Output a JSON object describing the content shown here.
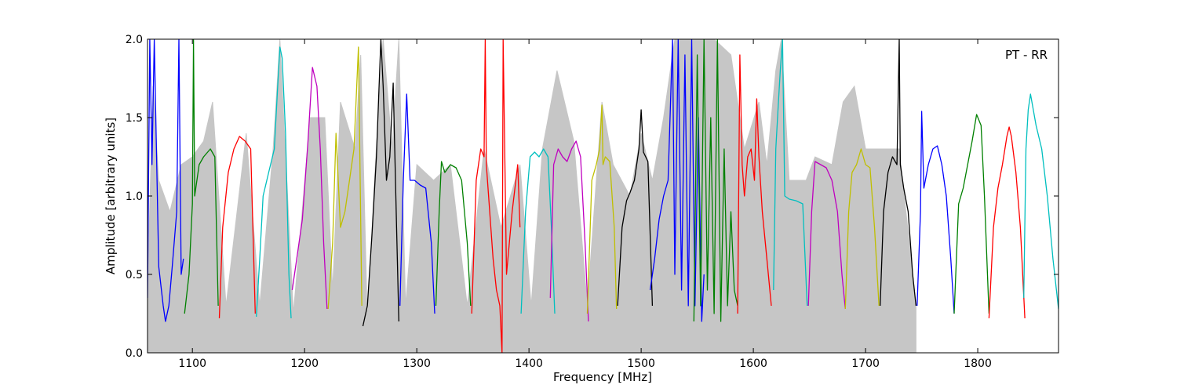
{
  "chart_data": {
    "type": "line",
    "title": "",
    "annotation": "PT - RR",
    "xlabel": "Frequency [MHz]",
    "ylabel": "Amplitude [arbitrary units]",
    "xlim": [
      1060,
      1872
    ],
    "ylim": [
      0,
      2.0
    ],
    "x_ticks": [
      1100,
      1200,
      1300,
      1400,
      1500,
      1600,
      1700,
      1800
    ],
    "x_tick_labels": [
      "1100",
      "1200",
      "1300",
      "1400",
      "1500",
      "1600",
      "1700",
      "1800"
    ],
    "y_ticks": [
      0.0,
      0.5,
      1.0,
      1.5,
      2.0
    ],
    "y_tick_labels": [
      "0.0",
      "0.5",
      "1.0",
      "1.5",
      "2.0"
    ],
    "grid": false,
    "background_color": "#c0c0c0",
    "background": [
      [
        1060,
        0.4
      ],
      [
        1065,
        1.7
      ],
      [
        1070,
        1.1
      ],
      [
        1080,
        0.9
      ],
      [
        1090,
        1.2
      ],
      [
        1100,
        1.25
      ],
      [
        1110,
        1.35
      ],
      [
        1118,
        1.6
      ],
      [
        1130,
        0.3
      ],
      [
        1148,
        1.4
      ],
      [
        1160,
        0.3
      ],
      [
        1172,
        1.3
      ],
      [
        1178,
        2.0
      ],
      [
        1190,
        0.25
      ],
      [
        1205,
        1.5
      ],
      [
        1218,
        1.5
      ],
      [
        1225,
        0.4
      ],
      [
        1232,
        1.6
      ],
      [
        1245,
        1.3
      ],
      [
        1250,
        1.9
      ],
      [
        1256,
        0.2
      ],
      [
        1263,
        1.2
      ],
      [
        1270,
        2.0
      ],
      [
        1278,
        1.3
      ],
      [
        1284,
        2.0
      ],
      [
        1290,
        0.3
      ],
      [
        1300,
        1.2
      ],
      [
        1315,
        1.1
      ],
      [
        1330,
        1.2
      ],
      [
        1345,
        0.3
      ],
      [
        1360,
        1.3
      ],
      [
        1375,
        0.8
      ],
      [
        1392,
        1.2
      ],
      [
        1402,
        0.3
      ],
      [
        1412,
        1.3
      ],
      [
        1425,
        1.8
      ],
      [
        1440,
        1.35
      ],
      [
        1452,
        0.3
      ],
      [
        1465,
        1.6
      ],
      [
        1475,
        1.2
      ],
      [
        1490,
        1.0
      ],
      [
        1500,
        1.4
      ],
      [
        1510,
        1.1
      ],
      [
        1520,
        1.5
      ],
      [
        1530,
        2.0
      ],
      [
        1550,
        2.0
      ],
      [
        1565,
        2.0
      ],
      [
        1580,
        1.9
      ],
      [
        1592,
        1.3
      ],
      [
        1605,
        1.6
      ],
      [
        1612,
        1.2
      ],
      [
        1620,
        1.8
      ],
      [
        1625,
        2.0
      ],
      [
        1632,
        1.1
      ],
      [
        1647,
        1.1
      ],
      [
        1655,
        1.25
      ],
      [
        1670,
        1.2
      ],
      [
        1680,
        1.6
      ],
      [
        1690,
        1.7
      ],
      [
        1700,
        1.3
      ],
      [
        1710,
        1.3
      ],
      [
        1720,
        1.3
      ],
      [
        1730,
        1.3
      ],
      [
        1745,
        0.3
      ]
    ],
    "series": [
      {
        "color": "#0000ff",
        "x": [
          1060,
          1062,
          1064,
          1066,
          1070,
          1074,
          1076,
          1079,
          1082,
          1086,
          1088,
          1090,
          1092
        ],
        "y": [
          0.35,
          2.0,
          1.2,
          2.0,
          0.55,
          0.3,
          0.2,
          0.3,
          0.55,
          0.9,
          2.0,
          0.5,
          0.6
        ]
      },
      {
        "color": "#008000",
        "x": [
          1093,
          1097,
          1100,
          1101,
          1102,
          1106,
          1110,
          1116,
          1120,
          1123
        ],
        "y": [
          0.25,
          0.5,
          0.95,
          2.0,
          1.0,
          1.2,
          1.25,
          1.3,
          1.25,
          0.3
        ]
      },
      {
        "color": "#ff0000",
        "x": [
          1124,
          1127,
          1132,
          1137,
          1142,
          1147,
          1152,
          1156
        ],
        "y": [
          0.22,
          0.8,
          1.15,
          1.3,
          1.38,
          1.35,
          1.3,
          0.25
        ]
      },
      {
        "color": "#00bfbf",
        "x": [
          1157,
          1160,
          1163,
          1168,
          1173,
          1176,
          1178,
          1180,
          1183,
          1186,
          1188
        ],
        "y": [
          0.23,
          0.6,
          1.0,
          1.15,
          1.3,
          1.7,
          1.95,
          1.88,
          1.4,
          0.5,
          0.22
        ]
      },
      {
        "color": "#bf00bf",
        "x": [
          1189,
          1193,
          1198,
          1203,
          1207,
          1211,
          1214,
          1217,
          1220
        ],
        "y": [
          0.4,
          0.6,
          0.85,
          1.35,
          1.82,
          1.7,
          1.3,
          0.7,
          0.28
        ]
      },
      {
        "color": "#bfbf00",
        "x": [
          1221,
          1225,
          1228,
          1232,
          1236,
          1240,
          1244,
          1248,
          1251
        ],
        "y": [
          0.28,
          0.7,
          1.4,
          0.8,
          0.9,
          1.1,
          1.3,
          1.95,
          0.3
        ]
      },
      {
        "color": "#000000",
        "x": [
          1252,
          1256,
          1260,
          1264,
          1268,
          1270,
          1273,
          1276,
          1279,
          1282,
          1284
        ],
        "y": [
          0.17,
          0.3,
          0.75,
          1.25,
          2.0,
          1.7,
          1.1,
          1.25,
          1.72,
          0.8,
          0.2
        ]
      },
      {
        "color": "#0000ff",
        "x": [
          1285,
          1288,
          1291,
          1294,
          1298,
          1303,
          1308,
          1313,
          1316
        ],
        "y": [
          0.3,
          1.1,
          1.65,
          1.1,
          1.1,
          1.07,
          1.05,
          0.7,
          0.25
        ]
      },
      {
        "color": "#008000",
        "x": [
          1317,
          1320,
          1322,
          1325,
          1330,
          1335,
          1340,
          1345,
          1348
        ],
        "y": [
          0.3,
          0.9,
          1.22,
          1.15,
          1.2,
          1.18,
          1.1,
          0.7,
          0.3
        ]
      },
      {
        "color": "#ff0000",
        "x": [
          1349,
          1353,
          1357,
          1360,
          1361,
          1362,
          1365,
          1368,
          1371,
          1374,
          1376,
          1377,
          1380,
          1385,
          1390,
          1392
        ],
        "y": [
          0.25,
          1.1,
          1.3,
          1.25,
          2.0,
          1.2,
          0.9,
          0.6,
          0.4,
          0.3,
          0.0,
          2.0,
          0.5,
          0.9,
          1.2,
          0.8
        ]
      },
      {
        "color": "#00bfbf",
        "x": [
          1393,
          1397,
          1401,
          1405,
          1409,
          1413,
          1417,
          1420,
          1423
        ],
        "y": [
          0.25,
          0.9,
          1.25,
          1.28,
          1.25,
          1.3,
          1.25,
          0.8,
          0.25
        ]
      },
      {
        "color": "#bf00bf",
        "x": [
          1419,
          1422,
          1426,
          1430,
          1434,
          1438,
          1442,
          1446,
          1450,
          1453
        ],
        "y": [
          0.35,
          1.2,
          1.3,
          1.25,
          1.22,
          1.3,
          1.35,
          1.25,
          0.7,
          0.2
        ]
      },
      {
        "color": "#bfbf00",
        "x": [
          1452,
          1456,
          1460,
          1463,
          1465,
          1466,
          1468,
          1472,
          1476,
          1478
        ],
        "y": [
          0.25,
          1.1,
          1.2,
          1.3,
          1.58,
          1.2,
          1.25,
          1.22,
          0.8,
          0.28
        ]
      },
      {
        "color": "#000000",
        "x": [
          1479,
          1483,
          1487,
          1490,
          1494,
          1498,
          1500,
          1502,
          1506,
          1510
        ],
        "y": [
          0.3,
          0.8,
          0.97,
          1.02,
          1.1,
          1.3,
          1.55,
          1.28,
          1.22,
          0.3
        ]
      },
      {
        "color": "#0000ff",
        "x": [
          1508,
          1512,
          1516,
          1520,
          1524,
          1528,
          1530,
          1533,
          1536,
          1539,
          1542,
          1545,
          1548,
          1551,
          1554,
          1556
        ],
        "y": [
          0.4,
          0.6,
          0.85,
          1.0,
          1.1,
          2.0,
          0.5,
          2.0,
          0.4,
          1.9,
          0.3,
          2.0,
          0.3,
          1.5,
          0.2,
          0.5
        ]
      },
      {
        "color": "#008000",
        "x": [
          1547,
          1550,
          1553,
          1556,
          1559,
          1562,
          1565,
          1568,
          1571,
          1574,
          1577,
          1580,
          1583,
          1586
        ],
        "y": [
          0.2,
          1.9,
          0.3,
          2.0,
          0.4,
          1.5,
          0.25,
          2.0,
          0.2,
          1.3,
          0.3,
          0.9,
          0.4,
          0.3
        ]
      },
      {
        "color": "#ff0000",
        "x": [
          1586,
          1588,
          1590,
          1592,
          1595,
          1598,
          1601,
          1603,
          1605,
          1608,
          1612,
          1616
        ],
        "y": [
          0.25,
          1.9,
          1.2,
          1.0,
          1.25,
          1.3,
          1.1,
          1.62,
          1.25,
          0.9,
          0.6,
          0.3
        ]
      },
      {
        "color": "#00bfbf",
        "x": [
          1618,
          1620,
          1622,
          1624,
          1626,
          1628,
          1632,
          1638,
          1644,
          1648
        ],
        "y": [
          0.4,
          1.3,
          1.55,
          1.8,
          2.0,
          1.0,
          0.98,
          0.97,
          0.95,
          0.3
        ]
      },
      {
        "color": "#bf00bf",
        "x": [
          1649,
          1652,
          1655,
          1660,
          1665,
          1670,
          1675,
          1679,
          1682
        ],
        "y": [
          0.3,
          0.9,
          1.22,
          1.2,
          1.18,
          1.1,
          0.9,
          0.5,
          0.28
        ]
      },
      {
        "color": "#bfbf00",
        "x": [
          1682,
          1685,
          1688,
          1692,
          1696,
          1700,
          1704,
          1708,
          1712
        ],
        "y": [
          0.28,
          0.9,
          1.15,
          1.2,
          1.3,
          1.2,
          1.18,
          0.8,
          0.3
        ]
      },
      {
        "color": "#000000",
        "x": [
          1713,
          1716,
          1720,
          1724,
          1728,
          1730,
          1731,
          1734,
          1738,
          1742,
          1745
        ],
        "y": [
          0.3,
          0.9,
          1.15,
          1.25,
          1.2,
          2.0,
          1.2,
          1.05,
          0.9,
          0.5,
          0.3
        ]
      },
      {
        "color": "#0000ff",
        "x": [
          1746,
          1749,
          1750,
          1752,
          1756,
          1760,
          1764,
          1768,
          1772,
          1776,
          1779
        ],
        "y": [
          0.3,
          0.9,
          1.54,
          1.05,
          1.2,
          1.3,
          1.32,
          1.2,
          1.0,
          0.6,
          0.25
        ]
      },
      {
        "color": "#008000",
        "x": [
          1779,
          1783,
          1787,
          1791,
          1795,
          1799,
          1803,
          1806,
          1810
        ],
        "y": [
          0.25,
          0.95,
          1.05,
          1.2,
          1.35,
          1.52,
          1.45,
          1.0,
          0.25
        ]
      },
      {
        "color": "#ff0000",
        "x": [
          1810,
          1814,
          1818,
          1822,
          1826,
          1828,
          1830,
          1834,
          1838,
          1842
        ],
        "y": [
          0.22,
          0.8,
          1.05,
          1.2,
          1.38,
          1.44,
          1.38,
          1.15,
          0.8,
          0.22
        ]
      },
      {
        "color": "#00bfbf",
        "x": [
          1841,
          1843,
          1845,
          1847,
          1852,
          1857,
          1862,
          1867,
          1872
        ],
        "y": [
          0.35,
          1.3,
          1.55,
          1.65,
          1.45,
          1.3,
          1.0,
          0.6,
          0.28
        ]
      }
    ]
  }
}
